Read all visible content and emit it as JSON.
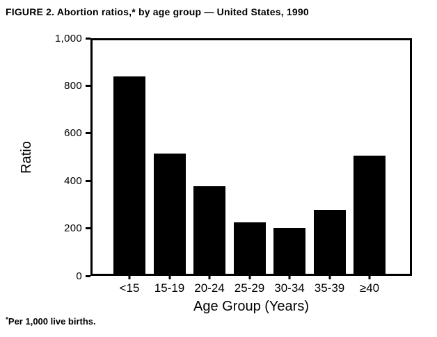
{
  "figure": {
    "footnote_marker": "*",
    "footnote_text": "Per 1,000 live births."
  },
  "chart_data": {
    "type": "bar",
    "title": "FIGURE 2. Abortion ratios,* by age group — United States, 1990",
    "categories": [
      "<15",
      "15-19",
      "20-24",
      "25-29",
      "30-34",
      "35-39",
      "≥40"
    ],
    "values": [
      845,
      515,
      375,
      220,
      195,
      275,
      505
    ],
    "xlabel": "Age Group (Years)",
    "ylabel": "Ratio",
    "ylim": [
      0,
      1000
    ],
    "yticks": [
      0,
      200,
      400,
      600,
      800,
      1000
    ],
    "ytick_labels": [
      "0",
      "200",
      "400",
      "600",
      "800",
      "1,000"
    ],
    "bar_color": "#000000",
    "background_color": "#ffffff",
    "grid": false,
    "legend_position": "none",
    "footnote": "*Per 1,000 live births."
  }
}
